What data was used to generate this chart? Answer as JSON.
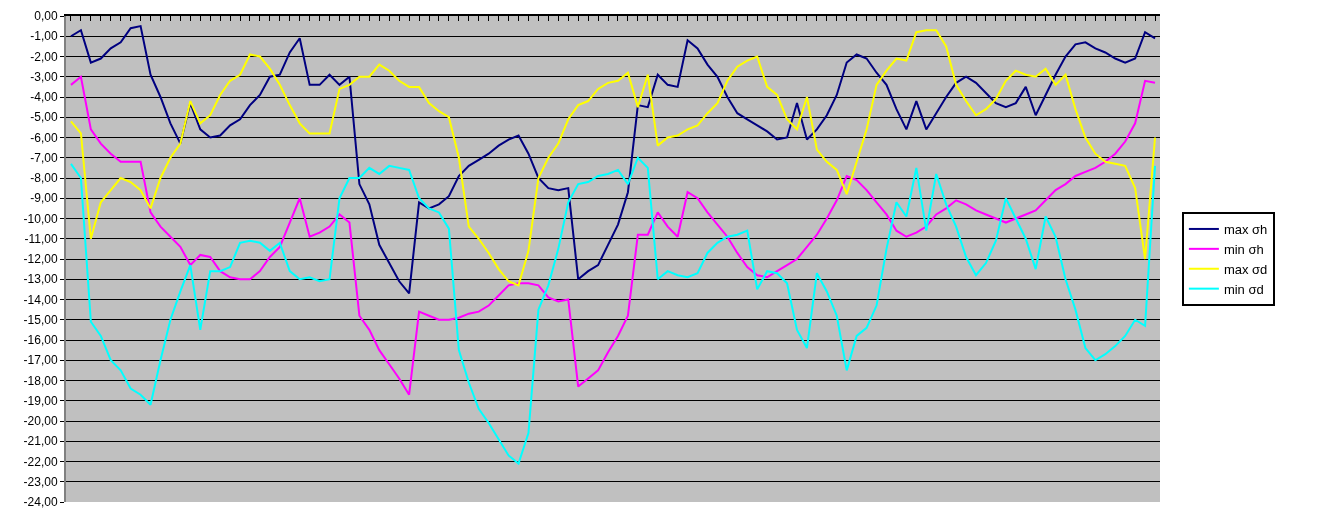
{
  "chart_data": {
    "type": "line",
    "categories": [
      null,
      null,
      null,
      null,
      null,
      null,
      null,
      null,
      null,
      null,
      null,
      null,
      null,
      null,
      null,
      null,
      null,
      null,
      null,
      null,
      null,
      null,
      null,
      null,
      null,
      null,
      null,
      null,
      null,
      null,
      null,
      null,
      null,
      null,
      null,
      null,
      null,
      null,
      null,
      null,
      null,
      null,
      null,
      null,
      null,
      null,
      null,
      null,
      null,
      null,
      null,
      null,
      null,
      null,
      null,
      null,
      null,
      null,
      null,
      null,
      null,
      null,
      null,
      null,
      null,
      null,
      null,
      null,
      null,
      null,
      null,
      null,
      null,
      null,
      null,
      null,
      null,
      null,
      null,
      null,
      null,
      null,
      null,
      null,
      null,
      null,
      null,
      null,
      null,
      null,
      null,
      null,
      null,
      null,
      null,
      null,
      null,
      null,
      null,
      null,
      null,
      null,
      null,
      null,
      null,
      null,
      null,
      null,
      null,
      null
    ],
    "series": [
      {
        "name": "max σh",
        "color": "#000080",
        "values": [
          -1.0,
          -0.7,
          -2.3,
          -2.1,
          -1.6,
          -1.3,
          -0.6,
          -0.5,
          -2.9,
          -4.0,
          -5.3,
          -6.3,
          -4.3,
          -5.6,
          -6.0,
          -5.9,
          -5.4,
          -5.1,
          -4.4,
          -3.9,
          -3.0,
          -2.9,
          -1.8,
          -1.1,
          -3.4,
          -3.4,
          -2.9,
          -3.4,
          -3.0,
          -8.3,
          -9.3,
          -11.3,
          -12.2,
          -13.1,
          -13.7,
          -9.2,
          -9.5,
          -9.3,
          -8.9,
          -7.9,
          -7.4,
          -7.1,
          -6.8,
          -6.4,
          -6.1,
          -5.9,
          -6.8,
          -8.0,
          -8.5,
          -8.6,
          -8.5,
          -13.0,
          -12.6,
          -12.3,
          -11.3,
          -10.3,
          -8.7,
          -4.4,
          -4.5,
          -2.9,
          -3.4,
          -3.5,
          -1.2,
          -1.6,
          -2.4,
          -3.0,
          -4.0,
          -4.8,
          -5.1,
          -5.4,
          -5.7,
          -6.1,
          -6.0,
          -4.3,
          -6.1,
          -5.6,
          -4.9,
          -3.9,
          -2.3,
          -1.9,
          -2.1,
          -2.8,
          -3.4,
          -4.6,
          -5.6,
          -4.2,
          -5.6,
          -4.8,
          -4.0,
          -3.3,
          -3.0,
          -3.3,
          -3.8,
          -4.3,
          -4.5,
          -4.3,
          -3.5,
          -4.9,
          -3.9,
          -2.9,
          -2.0,
          -1.4,
          -1.3,
          -1.6,
          -1.8,
          -2.1,
          -2.3,
          -2.1,
          -0.8,
          -1.1
        ]
      },
      {
        "name": "min σh",
        "color": "#ff00ff",
        "values": [
          -3.4,
          -3.0,
          -5.6,
          -6.3,
          -6.8,
          -7.2,
          -7.2,
          -7.2,
          -9.7,
          -10.4,
          -10.9,
          -11.4,
          -12.3,
          -11.8,
          -11.9,
          -12.6,
          -12.9,
          -13.0,
          -13.0,
          -12.6,
          -11.9,
          -11.4,
          -10.2,
          -9.0,
          -10.9,
          -10.7,
          -10.4,
          -9.8,
          -10.2,
          -14.8,
          -15.5,
          -16.5,
          -17.2,
          -17.9,
          -18.7,
          -14.6,
          -14.8,
          -15.0,
          -15.0,
          -14.9,
          -14.7,
          -14.6,
          -14.3,
          -13.8,
          -13.3,
          -13.2,
          -13.2,
          -13.3,
          -13.9,
          -14.1,
          -14.0,
          -18.3,
          -17.9,
          -17.5,
          -16.6,
          -15.8,
          -14.8,
          -10.8,
          -10.8,
          -9.7,
          -10.4,
          -10.9,
          -8.7,
          -9.0,
          -9.7,
          -10.3,
          -10.9,
          -11.7,
          -12.4,
          -12.8,
          -12.9,
          -12.6,
          -12.3,
          -12.0,
          -11.4,
          -10.8,
          -10.0,
          -9.1,
          -7.9,
          -8.1,
          -8.6,
          -9.2,
          -9.8,
          -10.6,
          -10.9,
          -10.7,
          -10.4,
          -9.8,
          -9.5,
          -9.1,
          -9.3,
          -9.6,
          -9.8,
          -10.0,
          -10.2,
          -10.0,
          -9.8,
          -9.6,
          -9.1,
          -8.6,
          -8.3,
          -7.9,
          -7.7,
          -7.5,
          -7.2,
          -6.8,
          -6.2,
          -5.3,
          -3.2,
          -3.3
        ]
      },
      {
        "name": "max σd",
        "color": "#ffff00",
        "values": [
          -5.2,
          -5.8,
          -11.0,
          -9.2,
          -8.6,
          -8.0,
          -8.2,
          -8.6,
          -9.5,
          -8.0,
          -7.0,
          -6.3,
          -4.2,
          -5.3,
          -4.9,
          -3.9,
          -3.2,
          -2.9,
          -1.9,
          -2.0,
          -2.6,
          -3.4,
          -4.4,
          -5.3,
          -5.8,
          -5.8,
          -5.8,
          -3.6,
          -3.4,
          -3.0,
          -3.0,
          -2.4,
          -2.7,
          -3.2,
          -3.5,
          -3.5,
          -4.3,
          -4.7,
          -5.0,
          -7.0,
          -10.4,
          -11.0,
          -11.7,
          -12.5,
          -13.1,
          -13.3,
          -11.6,
          -8.0,
          -7.0,
          -6.3,
          -5.1,
          -4.4,
          -4.2,
          -3.6,
          -3.3,
          -3.2,
          -2.8,
          -4.5,
          -2.9,
          -6.4,
          -6.0,
          -5.9,
          -5.6,
          -5.4,
          -4.8,
          -4.3,
          -3.2,
          -2.5,
          -2.2,
          -2.0,
          -3.5,
          -3.9,
          -5.1,
          -5.6,
          -4.0,
          -6.6,
          -7.2,
          -7.6,
          -8.8,
          -7.2,
          -5.6,
          -3.4,
          -2.7,
          -2.1,
          -2.2,
          -0.8,
          -0.7,
          -0.7,
          -1.5,
          -3.4,
          -4.2,
          -4.9,
          -4.6,
          -4.1,
          -3.2,
          -2.7,
          -2.9,
          -3.0,
          -2.6,
          -3.4,
          -2.9,
          -4.6,
          -6.0,
          -6.8,
          -7.2,
          -7.3,
          -7.4,
          -8.5,
          -12.0,
          -6.0
        ]
      },
      {
        "name": "min σd",
        "color": "#00ffff",
        "values": [
          -7.3,
          -8.0,
          -15.1,
          -15.8,
          -17.0,
          -17.5,
          -18.4,
          -18.7,
          -19.2,
          -17.0,
          -15.0,
          -13.6,
          -12.3,
          -15.5,
          -12.6,
          -12.6,
          -12.4,
          -11.2,
          -11.1,
          -11.2,
          -11.6,
          -11.2,
          -12.6,
          -13.0,
          -12.9,
          -13.1,
          -13.0,
          -9.0,
          -8.0,
          -8.0,
          -7.5,
          -7.8,
          -7.4,
          -7.5,
          -7.6,
          -9.0,
          -9.5,
          -9.7,
          -10.5,
          -16.5,
          -18.1,
          -19.4,
          -20.1,
          -20.9,
          -21.7,
          -22.1,
          -20.6,
          -14.5,
          -13.3,
          -11.5,
          -9.2,
          -8.3,
          -8.2,
          -7.9,
          -7.8,
          -7.6,
          -8.3,
          -7.0,
          -7.5,
          -13.0,
          -12.6,
          -12.8,
          -12.9,
          -12.7,
          -11.7,
          -11.2,
          -10.9,
          -10.8,
          -10.6,
          -13.5,
          -12.6,
          -12.7,
          -13.2,
          -15.5,
          -16.4,
          -12.7,
          -13.6,
          -14.8,
          -17.5,
          -15.8,
          -15.4,
          -14.3,
          -11.5,
          -9.2,
          -9.9,
          -7.5,
          -10.6,
          -7.8,
          -9.3,
          -10.4,
          -11.9,
          -12.8,
          -12.2,
          -11.1,
          -9.0,
          -10.0,
          -11.0,
          -12.5,
          -9.9,
          -10.9,
          -13.0,
          -14.5,
          -16.4,
          -17.0,
          -16.7,
          -16.3,
          -15.8,
          -15.0,
          -15.3,
          -7.4
        ]
      }
    ],
    "ylim": [
      -24,
      0
    ],
    "yticks": [
      {
        "value": 0,
        "label": "0,00"
      },
      {
        "value": -1,
        "label": "-1,00"
      },
      {
        "value": -2,
        "label": "-2,00"
      },
      {
        "value": -3,
        "label": "-3,00"
      },
      {
        "value": -4,
        "label": "-4,00"
      },
      {
        "value": -5,
        "label": "-5,00"
      },
      {
        "value": -6,
        "label": "-6,00"
      },
      {
        "value": -7,
        "label": "-7,00"
      },
      {
        "value": -8,
        "label": "-8,00"
      },
      {
        "value": -9,
        "label": "-9,00"
      },
      {
        "value": -10,
        "label": "-10,00"
      },
      {
        "value": -11,
        "label": "-11,00"
      },
      {
        "value": -12,
        "label": "-12,00"
      },
      {
        "value": -13,
        "label": "-13,00"
      },
      {
        "value": -14,
        "label": "-14,00"
      },
      {
        "value": -15,
        "label": "-15,00"
      },
      {
        "value": -16,
        "label": "-16,00"
      },
      {
        "value": -17,
        "label": "-17,00"
      },
      {
        "value": -18,
        "label": "-18,00"
      },
      {
        "value": -19,
        "label": "-19,00"
      },
      {
        "value": -20,
        "label": "-20,00"
      },
      {
        "value": -21,
        "label": "-21,00"
      },
      {
        "value": -22,
        "label": "-22,00"
      },
      {
        "value": -23,
        "label": "-23,00"
      },
      {
        "value": -24,
        "label": "-24,00"
      }
    ],
    "grid": "y",
    "legend": "right",
    "tick_labels": "y",
    "marker": "none",
    "line_style": "solid"
  }
}
